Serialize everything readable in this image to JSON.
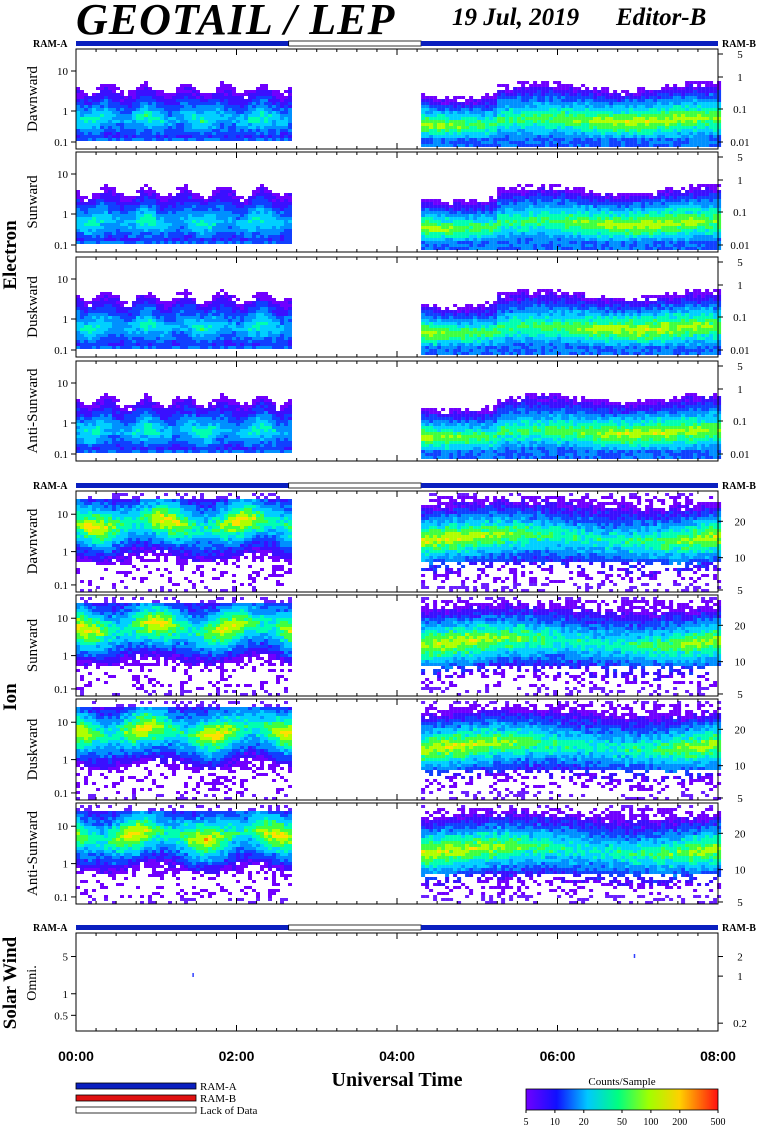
{
  "header": {
    "title": "GEOTAIL / LEP",
    "date": "19 Jul, 2019",
    "editor": "Editor-B"
  },
  "ram_labels": {
    "left": "RAM-A",
    "right": "RAM-B"
  },
  "groups": [
    {
      "name": "Electron",
      "panels": [
        "Dawnward",
        "Sunward",
        "Duskward",
        "Anti-Sunward"
      ]
    },
    {
      "name": "Ion",
      "panels": [
        "Dawnward",
        "Sunward",
        "Duskward",
        "Anti-Sunward"
      ]
    },
    {
      "name": "Solar Wind",
      "panels": [
        "Omni."
      ]
    }
  ],
  "axis_ticks": {
    "electron_left": [
      "10",
      "1",
      "0.1"
    ],
    "electron_right": [
      "5",
      "1",
      "0.1",
      "0.01"
    ],
    "ion_left": [
      "10",
      "1",
      "0.1"
    ],
    "ion_right": [
      "20",
      "10",
      "5"
    ],
    "sw_left": [
      "5",
      "1",
      "0.5"
    ],
    "sw_right": [
      "2",
      "1",
      "0.2"
    ]
  },
  "xaxis": {
    "label": "Universal Time",
    "ticks": [
      "00:00",
      "02:00",
      "04:00",
      "06:00",
      "08:00"
    ],
    "range_hours": [
      0,
      8
    ]
  },
  "legend": {
    "items": [
      {
        "label": "RAM-A",
        "color": "#0a1fbf"
      },
      {
        "label": "RAM-B",
        "color": "#e01010"
      },
      {
        "label": "Lack of Data",
        "color": "#ffffff"
      }
    ]
  },
  "colorbar": {
    "title": "Counts/Sample",
    "ticks": [
      "5",
      "10",
      "20",
      "50",
      "100",
      "200",
      "500"
    ]
  },
  "chart_data": {
    "type": "heatmap",
    "x_unit": "hours UT",
    "data_gap_hours": [
      2.65,
      4.3
    ],
    "ram_mode_segments": [
      {
        "mode": "RAM-A",
        "start": 0,
        "end": 2.65
      },
      {
        "mode": "Lack of Data",
        "start": 2.65,
        "end": 4.3
      },
      {
        "mode": "RAM-A",
        "start": 4.3,
        "end": 8
      }
    ],
    "colorbar_range": [
      5,
      500
    ]
  }
}
